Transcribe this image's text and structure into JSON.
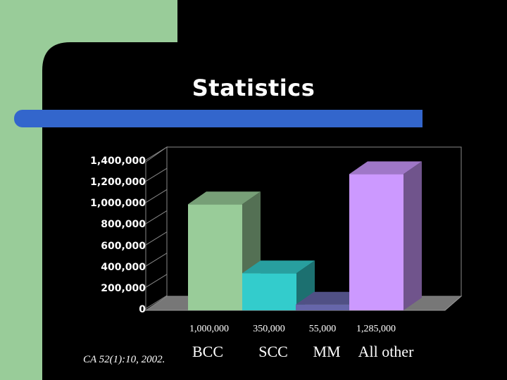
{
  "slide": {
    "title": "Statistics",
    "citation": "CA 52(1):10, 2002.",
    "colors": {
      "background": "#000000",
      "top_left_block": "#99cc99",
      "title_bar": "#3366cc"
    }
  },
  "chart_data": {
    "type": "bar",
    "style": "3d-column",
    "categories": [
      "BCC",
      "SCC",
      "MM",
      "All other"
    ],
    "values": [
      1000000,
      350000,
      55000,
      1285000
    ],
    "value_labels": [
      "1,000,000",
      "350,000",
      "55,000",
      "1,285,000"
    ],
    "ytick_labels": [
      "0",
      "200,000",
      "400,000",
      "600,000",
      "800,000",
      "1,000,000",
      "1,200,000",
      "1,400,000"
    ],
    "ylim": [
      0,
      1400000
    ],
    "grid": false,
    "colors": [
      "#99cc99",
      "#33cccc",
      "#6666aa",
      "#cc99ff"
    ],
    "xlabel": "",
    "ylabel": ""
  }
}
